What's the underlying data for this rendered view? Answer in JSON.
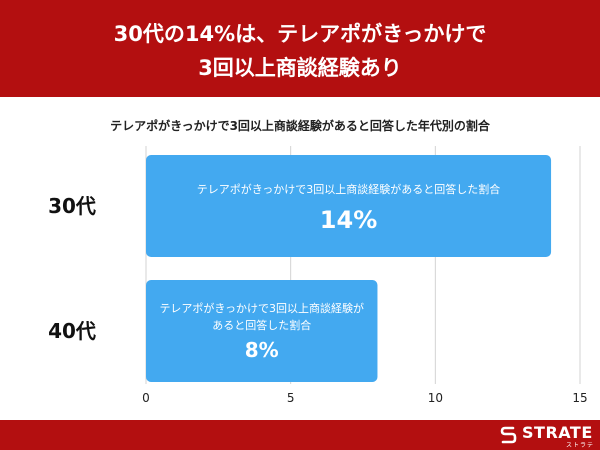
{
  "header": {
    "title_line1": "30代の14%は、テレアポがきっかけで",
    "title_line2": "3回以上商談経験あり"
  },
  "chart_data": {
    "type": "bar",
    "orientation": "horizontal",
    "title": "テレアポがきっかけで3回以上商談経験があると回答した年代別の割合",
    "categories": [
      "30代",
      "40代"
    ],
    "values": [
      14,
      8
    ],
    "value_labels": [
      "14%",
      "8%"
    ],
    "bar_captions": [
      [
        "テレアポがきっかけで3回以上商談経験があると回答した割合"
      ],
      [
        "テレアポがきっかけで3回以上商談経験が",
        "あると回答した割合"
      ]
    ],
    "xlim": [
      0,
      15
    ],
    "xticks": [
      0,
      5,
      10,
      15
    ],
    "xlabel": "",
    "ylabel": "",
    "grid": true,
    "bar_color": "#43a9f0"
  },
  "brand": {
    "name": "STRATE",
    "sub": "ストラテ"
  },
  "colors": {
    "header": "#b30f10",
    "footer": "#b30f10",
    "bar": "#43a9f0"
  }
}
